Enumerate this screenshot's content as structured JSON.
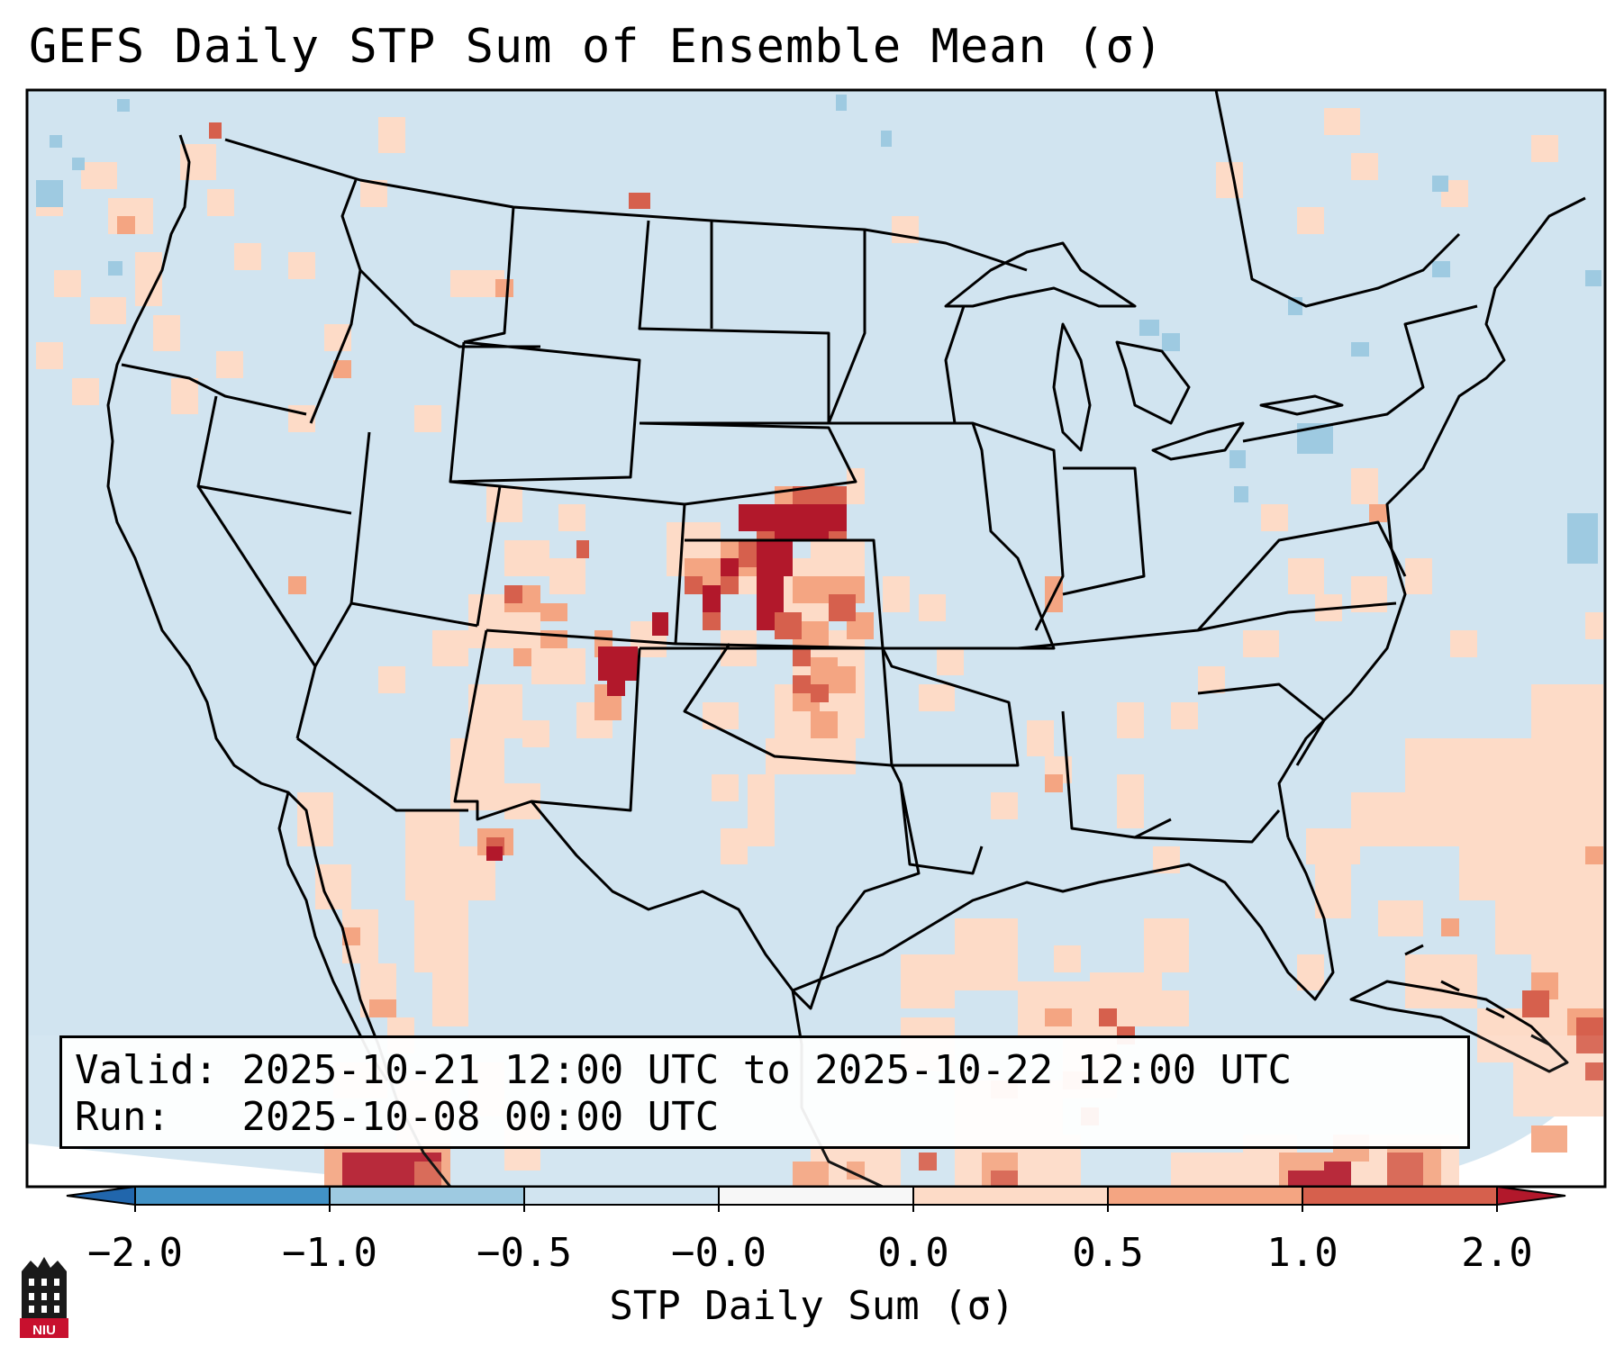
{
  "title": "GEFS Daily STP Sum of Ensemble Mean (σ)",
  "info": {
    "valid_label": "Valid:",
    "valid_value": "2025-10-21 12:00 UTC to 2025-10-22 12:00 UTC",
    "run_label": "Run:",
    "run_value": "2025-10-08 00:00 UTC"
  },
  "colorbar": {
    "label": "STP Daily Sum (σ)",
    "ticks": [
      "−2.0",
      "−1.0",
      "−0.5",
      "−0.0",
      "0.0",
      "0.5",
      "1.0",
      "2.0"
    ],
    "colors": [
      "#4292c6",
      "#9ecae1",
      "#d1e4f0",
      "#f7f7f7",
      "#fddbc7",
      "#f4a582",
      "#d6604d",
      "#b2182b"
    ],
    "extend": "both"
  },
  "map": {
    "region": "Continental United States",
    "background_color": "#d1e4f0",
    "logo": "NIU"
  }
}
